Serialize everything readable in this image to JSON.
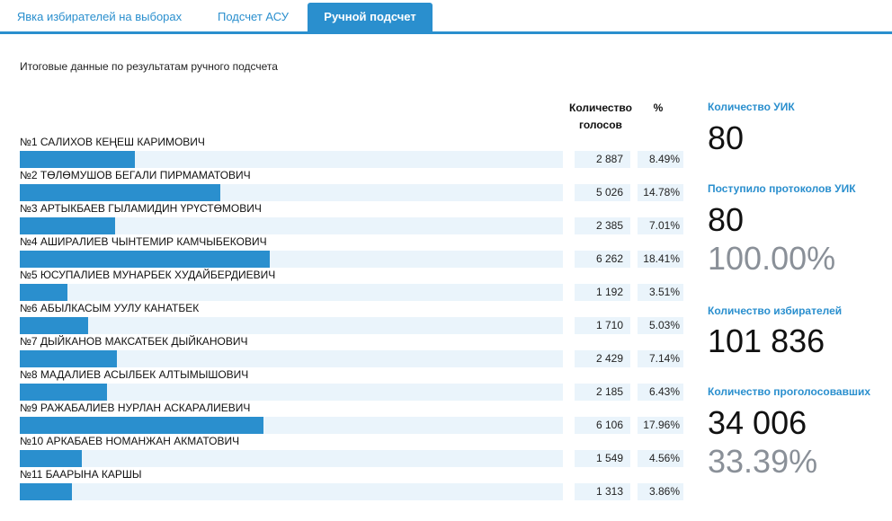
{
  "tabs": [
    {
      "label": "Явка избирателей на выборах",
      "active": false
    },
    {
      "label": "Подсчет АСУ",
      "active": false
    },
    {
      "label": "Ручной подсчет",
      "active": true
    }
  ],
  "subtitle": "Итоговые данные по результатам ручного подсчета",
  "columns": {
    "votes_line1": "Количество",
    "votes_line2": "голосов",
    "percent": "%"
  },
  "colors": {
    "accent": "#2a8fce",
    "track": "#eaf4fb",
    "muted": "#8a9098"
  },
  "candidates": [
    {
      "name": "№1 САЛИХОВ КЕҢЕШ КАРИМОВИЧ",
      "votes": "2 887",
      "percent": "8.49%",
      "share": 8.49
    },
    {
      "name": "№2 ТӨЛӨМУШОВ БЕГАЛИ ПИРМАМАТОВИЧ",
      "votes": "5 026",
      "percent": "14.78%",
      "share": 14.78
    },
    {
      "name": "№3 АРТЫКБАЕВ ГЫЛАМИДИН ҮРҮСТӨМОВИЧ",
      "votes": "2 385",
      "percent": "7.01%",
      "share": 7.01
    },
    {
      "name": "№4 АШИРАЛИЕВ ЧЫНТЕМИР КАМЧЫБЕКОВИЧ",
      "votes": "6 262",
      "percent": "18.41%",
      "share": 18.41
    },
    {
      "name": "№5 ЮСУПАЛИЕВ МУНАРБЕК ХУДАЙБЕРДИЕВИЧ",
      "votes": "1 192",
      "percent": "3.51%",
      "share": 3.51
    },
    {
      "name": "№6 АБЫЛКАСЫМ УУЛУ КАНАТБЕК",
      "votes": "1 710",
      "percent": "5.03%",
      "share": 5.03
    },
    {
      "name": "№7 ДЫЙКАНОВ МАКСАТБЕК ДЫЙКАНОВИЧ",
      "votes": "2 429",
      "percent": "7.14%",
      "share": 7.14
    },
    {
      "name": "№8 МАДАЛИЕВ АСЫЛБЕК АЛТЫМЫШОВИЧ",
      "votes": "2 185",
      "percent": "6.43%",
      "share": 6.43
    },
    {
      "name": "№9 РАЖАБАЛИЕВ НУРЛАН АСКАРАЛИЕВИЧ",
      "votes": "6 106",
      "percent": "17.96%",
      "share": 17.96
    },
    {
      "name": "№10 АРКАБАЕВ НОМАНЖАН АКМАТОВИЧ",
      "votes": "1 549",
      "percent": "4.56%",
      "share": 4.56
    },
    {
      "name": "№11 БААРЫНА КАРШЫ",
      "votes": "1 313",
      "percent": "3.86%",
      "share": 3.86
    }
  ],
  "stats": {
    "uik_count_label": "Количество УИК",
    "uik_count_value": "80",
    "protocols_label": "Поступило протоколов УИК",
    "protocols_value": "80",
    "protocols_percent": "100.00%",
    "voters_label": "Количество избирателей",
    "voters_value": "101 836",
    "voted_label": "Количество проголосовавших",
    "voted_value": "34 006",
    "voted_percent": "33.39%"
  }
}
